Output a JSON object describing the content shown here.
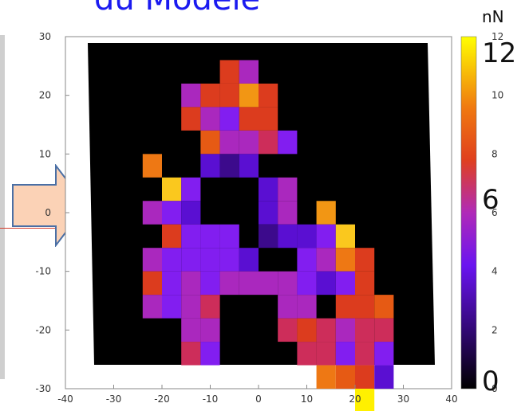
{
  "slide": {
    "title": "du Modèle"
  },
  "chart_data": {
    "type": "heatmap",
    "title": "",
    "xlabel": "",
    "ylabel": "",
    "xlim": [
      -40,
      40
    ],
    "ylim": [
      -30,
      30
    ],
    "x_ticks": [
      "-40",
      "-30",
      "-20",
      "-10",
      "0",
      "10",
      "20",
      "30",
      "40"
    ],
    "y_ticks": [
      "30",
      "20",
      "10",
      "0",
      "-10",
      "-20",
      "-30"
    ],
    "colorbar": {
      "unit": "nN",
      "range": [
        0,
        12
      ],
      "ticks": [
        "12",
        "10",
        "8",
        "6",
        "4",
        "2",
        "0"
      ],
      "annotations": [
        "12",
        "6",
        "0"
      ],
      "colormap": "gnuplot (black-purple-red-orange-yellow)"
    },
    "background": "#000000",
    "cell_size": 4,
    "cells_note": "Each cell: [x_center, y_center, force_nN]",
    "cells": [
      [
        -6,
        24,
        7
      ],
      [
        -2,
        24,
        5
      ],
      [
        -14,
        20,
        5
      ],
      [
        -10,
        20,
        7
      ],
      [
        -6,
        20,
        7
      ],
      [
        -2,
        20,
        10
      ],
      [
        2,
        20,
        7
      ],
      [
        -14,
        16,
        7
      ],
      [
        -10,
        16,
        5
      ],
      [
        -6,
        16,
        4
      ],
      [
        -2,
        16,
        7
      ],
      [
        2,
        16,
        7
      ],
      [
        -10,
        12,
        8
      ],
      [
        -6,
        12,
        5
      ],
      [
        -2,
        12,
        5
      ],
      [
        2,
        12,
        6
      ],
      [
        6,
        12,
        4
      ],
      [
        -22,
        8,
        9
      ],
      [
        -10,
        8,
        3
      ],
      [
        -6,
        8,
        2
      ],
      [
        -2,
        8,
        3
      ],
      [
        -18,
        4,
        11
      ],
      [
        -14,
        4,
        4
      ],
      [
        2,
        4,
        3
      ],
      [
        6,
        4,
        5
      ],
      [
        -22,
        0,
        5
      ],
      [
        -18,
        0,
        4
      ],
      [
        -14,
        0,
        3
      ],
      [
        2,
        0,
        3
      ],
      [
        6,
        0,
        5
      ],
      [
        14,
        0,
        10
      ],
      [
        -18,
        -4,
        7
      ],
      [
        -14,
        -4,
        4
      ],
      [
        -10,
        -4,
        4
      ],
      [
        -6,
        -4,
        4
      ],
      [
        2,
        -4,
        2
      ],
      [
        6,
        -4,
        3
      ],
      [
        10,
        -4,
        3
      ],
      [
        14,
        -4,
        4
      ],
      [
        18,
        -4,
        11
      ],
      [
        -22,
        -8,
        5
      ],
      [
        -18,
        -8,
        4
      ],
      [
        -14,
        -8,
        4
      ],
      [
        -10,
        -8,
        4
      ],
      [
        -6,
        -8,
        4
      ],
      [
        -2,
        -8,
        3
      ],
      [
        10,
        -8,
        4
      ],
      [
        14,
        -8,
        5
      ],
      [
        18,
        -8,
        9
      ],
      [
        22,
        -8,
        7
      ],
      [
        -22,
        -12,
        7
      ],
      [
        -18,
        -12,
        4
      ],
      [
        -14,
        -12,
        5
      ],
      [
        -10,
        -12,
        4
      ],
      [
        -6,
        -12,
        5
      ],
      [
        -2,
        -12,
        5
      ],
      [
        2,
        -12,
        5
      ],
      [
        6,
        -12,
        5
      ],
      [
        10,
        -12,
        4
      ],
      [
        14,
        -12,
        3
      ],
      [
        18,
        -12,
        4
      ],
      [
        22,
        -12,
        7
      ],
      [
        -22,
        -16,
        5
      ],
      [
        -18,
        -16,
        4
      ],
      [
        -14,
        -16,
        5
      ],
      [
        -10,
        -16,
        6
      ],
      [
        6,
        -16,
        5
      ],
      [
        10,
        -16,
        5
      ],
      [
        18,
        -16,
        7
      ],
      [
        22,
        -16,
        7
      ],
      [
        26,
        -16,
        8
      ],
      [
        -14,
        -20,
        5
      ],
      [
        -10,
        -20,
        5
      ],
      [
        6,
        -20,
        6
      ],
      [
        10,
        -20,
        7
      ],
      [
        14,
        -20,
        6
      ],
      [
        18,
        -20,
        5
      ],
      [
        22,
        -20,
        6
      ],
      [
        26,
        -20,
        6
      ],
      [
        -14,
        -24,
        6
      ],
      [
        -10,
        -24,
        4
      ],
      [
        10,
        -24,
        6
      ],
      [
        14,
        -24,
        6
      ],
      [
        18,
        -24,
        4
      ],
      [
        22,
        -24,
        6
      ],
      [
        26,
        -24,
        4
      ],
      [
        14,
        -28,
        9
      ],
      [
        18,
        -28,
        8
      ],
      [
        22,
        -28,
        7
      ],
      [
        26,
        -28,
        3
      ],
      [
        22,
        -32,
        12
      ]
    ]
  }
}
